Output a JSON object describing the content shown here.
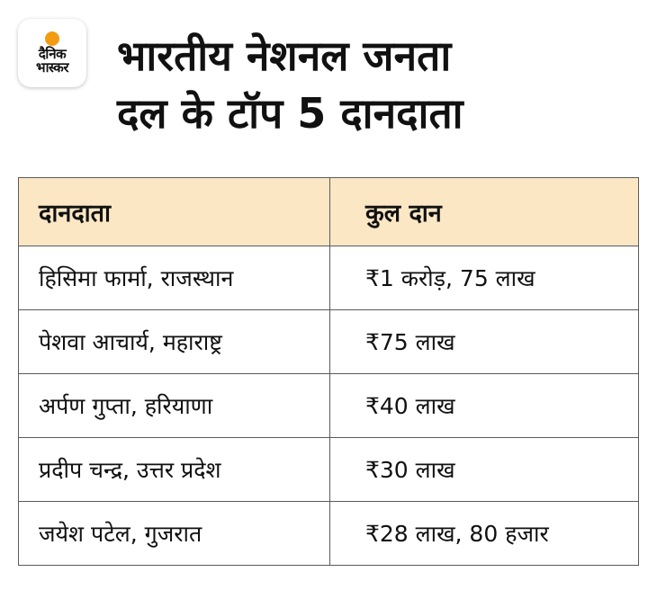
{
  "brand": {
    "line1": "दैनिक",
    "line2": "भास्कर",
    "accent_color": "#f39c12"
  },
  "title": {
    "line1": "भारतीय नेशनल जनता",
    "line2": "दल के टॉप 5 दानदाता"
  },
  "table": {
    "header_bg": "#fbe7c4",
    "columns": [
      "दानदाता",
      "कुल दान"
    ],
    "rows": [
      {
        "donor": "हिसिमा फार्मा, राजस्थान",
        "amount": "₹1 करोड़, 75 लाख"
      },
      {
        "donor": "पेशवा आचार्य, महाराष्ट्र",
        "amount": "₹75 लाख"
      },
      {
        "donor": "अर्पण गुप्ता, हरियाणा",
        "amount": "₹40 लाख"
      },
      {
        "donor": "प्रदीप चन्द्र, उत्तर प्रदेश",
        "amount": "₹30 लाख"
      },
      {
        "donor": "जयेश पटेल, गुजरात",
        "amount": "₹28 लाख, 80 हजार"
      }
    ]
  }
}
